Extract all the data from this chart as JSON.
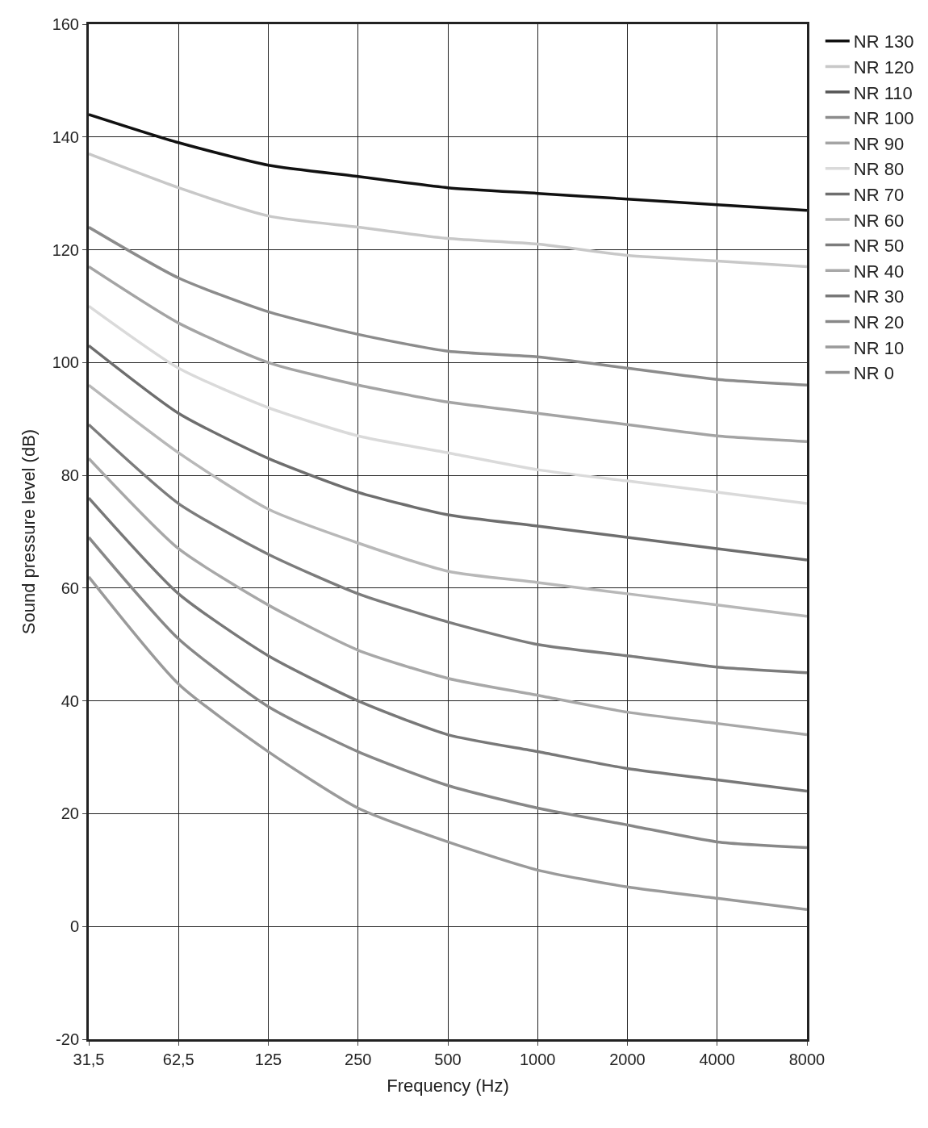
{
  "chart_data": {
    "type": "line",
    "xlabel": "Frequency (Hz)",
    "ylabel": "Sound pressure level (dB)",
    "categories": [
      "31,5",
      "62,5",
      "125",
      "250",
      "500",
      "1000",
      "2000",
      "4000",
      "8000"
    ],
    "ylim": [
      -20,
      160
    ],
    "yticks": [
      -20,
      0,
      20,
      40,
      60,
      80,
      100,
      120,
      140,
      160
    ],
    "grid": true,
    "legend": "right",
    "marker": "none",
    "line_style": "solid",
    "series": [
      {
        "name": "NR 130",
        "color": "#111111",
        "values": [
          144,
          139,
          135,
          133,
          131,
          130,
          129,
          128,
          127
        ]
      },
      {
        "name": "NR 120",
        "color": "#c8c8c8",
        "values": [
          137,
          131,
          126,
          124,
          122,
          121,
          119,
          118,
          117
        ]
      },
      {
        "name": "NR 110",
        "color": "#555555",
        "values": [
          null,
          null,
          null,
          null,
          null,
          null,
          null,
          null,
          null
        ]
      },
      {
        "name": "NR 100",
        "color": "#8c8c8c",
        "values": [
          124,
          115,
          109,
          105,
          102,
          101,
          99,
          97,
          96
        ]
      },
      {
        "name": "NR 90",
        "color": "#a4a4a4",
        "values": [
          117,
          107,
          100,
          96,
          93,
          91,
          89,
          87,
          86
        ]
      },
      {
        "name": "NR 80",
        "color": "#dadada",
        "values": [
          110,
          99,
          92,
          87,
          84,
          81,
          79,
          77,
          75
        ]
      },
      {
        "name": "NR 70",
        "color": "#6e6e6e",
        "values": [
          103,
          91,
          83,
          77,
          73,
          71,
          69,
          67,
          65
        ]
      },
      {
        "name": "NR 60",
        "color": "#b8b8b8",
        "values": [
          96,
          84,
          74,
          68,
          63,
          61,
          59,
          57,
          55
        ]
      },
      {
        "name": "NR 50",
        "color": "#7c7c7c",
        "values": [
          89,
          75,
          66,
          59,
          54,
          50,
          48,
          46,
          45
        ]
      },
      {
        "name": "NR 40",
        "color": "#a8a8a8",
        "values": [
          83,
          67,
          57,
          49,
          44,
          41,
          38,
          36,
          34
        ]
      },
      {
        "name": "NR 30",
        "color": "#787878",
        "values": [
          76,
          59,
          48,
          40,
          34,
          31,
          28,
          26,
          24
        ]
      },
      {
        "name": "NR 20",
        "color": "#888888",
        "values": [
          69,
          51,
          39,
          31,
          25,
          21,
          18,
          15,
          14
        ]
      },
      {
        "name": "NR 10",
        "color": "#9a9a9a",
        "values": [
          62,
          43,
          31,
          21,
          15,
          10,
          7,
          5,
          3
        ]
      },
      {
        "name": "NR 0",
        "color": "#909090",
        "values": [
          null,
          null,
          null,
          null,
          null,
          null,
          null,
          null,
          null
        ]
      }
    ]
  }
}
